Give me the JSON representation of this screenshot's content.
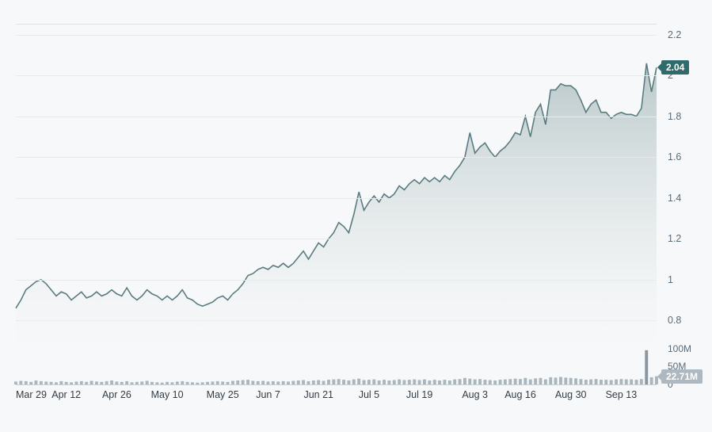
{
  "chart": {
    "type": "area",
    "background_color": "#f7f8f9",
    "grid_color": "#e8ebed",
    "axis_label_color": "#5a6b78",
    "x_label_color": "#333d45",
    "line_color": "#5a7c80",
    "line_width": 1.6,
    "fill_top_color": "#aebfc1",
    "fill_bottom_color": "#f4f6f6",
    "fill_opacity": 0.85,
    "y_axis": {
      "min": 0.7,
      "max": 2.25,
      "ticks": [
        0.8,
        1.0,
        1.2,
        1.4,
        1.6,
        1.8,
        2.0,
        2.2
      ]
    },
    "x_axis": {
      "ticks": [
        {
          "idx": 0,
          "label": "Mar 29"
        },
        {
          "idx": 10,
          "label": "Apr 12"
        },
        {
          "idx": 20,
          "label": "Apr 26"
        },
        {
          "idx": 30,
          "label": "May 10"
        },
        {
          "idx": 41,
          "label": "May 25"
        },
        {
          "idx": 50,
          "label": "Jun 7"
        },
        {
          "idx": 60,
          "label": "Jun 21"
        },
        {
          "idx": 70,
          "label": "Jul 5"
        },
        {
          "idx": 80,
          "label": "Jul 19"
        },
        {
          "idx": 91,
          "label": "Aug 3"
        },
        {
          "idx": 100,
          "label": "Aug 16"
        },
        {
          "idx": 110,
          "label": "Aug 30"
        },
        {
          "idx": 120,
          "label": "Sep 13"
        }
      ]
    },
    "current_price": {
      "value": 2.04,
      "label": "2.04",
      "badge_bg": "#2f6b6a"
    },
    "price_series": [
      0.86,
      0.9,
      0.95,
      0.97,
      0.99,
      1.0,
      0.98,
      0.95,
      0.92,
      0.94,
      0.93,
      0.9,
      0.92,
      0.94,
      0.91,
      0.92,
      0.94,
      0.92,
      0.93,
      0.95,
      0.93,
      0.92,
      0.96,
      0.92,
      0.9,
      0.92,
      0.95,
      0.93,
      0.92,
      0.9,
      0.92,
      0.9,
      0.92,
      0.95,
      0.91,
      0.9,
      0.88,
      0.87,
      0.88,
      0.89,
      0.91,
      0.92,
      0.9,
      0.93,
      0.95,
      0.98,
      1.02,
      1.03,
      1.05,
      1.06,
      1.05,
      1.07,
      1.06,
      1.08,
      1.06,
      1.08,
      1.11,
      1.14,
      1.1,
      1.14,
      1.18,
      1.16,
      1.2,
      1.23,
      1.28,
      1.26,
      1.23,
      1.32,
      1.43,
      1.34,
      1.38,
      1.41,
      1.38,
      1.42,
      1.4,
      1.42,
      1.46,
      1.44,
      1.47,
      1.49,
      1.47,
      1.5,
      1.48,
      1.5,
      1.48,
      1.51,
      1.49,
      1.53,
      1.56,
      1.6,
      1.72,
      1.62,
      1.65,
      1.67,
      1.63,
      1.6,
      1.63,
      1.65,
      1.68,
      1.72,
      1.71,
      1.8,
      1.7,
      1.82,
      1.86,
      1.76,
      1.93,
      1.93,
      1.96,
      1.95,
      1.95,
      1.93,
      1.88,
      1.82,
      1.86,
      1.88,
      1.82,
      1.82,
      1.79,
      1.81,
      1.82,
      1.81,
      1.81,
      1.8,
      1.84,
      2.06,
      1.92,
      2.04
    ]
  },
  "volume": {
    "type": "bar",
    "bar_color": "#a9b6be",
    "spike_color": "#8a97a0",
    "axis_label_color": "#5a6b78",
    "y_axis": {
      "min": 0,
      "max": 110,
      "ticks": [
        {
          "v": 0,
          "label": "0"
        },
        {
          "v": 50,
          "label": "50M"
        },
        {
          "v": 100,
          "label": "100M"
        }
      ]
    },
    "current_volume": {
      "value": 22.71,
      "label": "22.71M",
      "badge_bg": "#aeb8c0"
    },
    "series": [
      8,
      10,
      9,
      7,
      11,
      9,
      8,
      7,
      6,
      9,
      7,
      6,
      8,
      9,
      7,
      10,
      8,
      7,
      9,
      11,
      8,
      7,
      9,
      6,
      7,
      8,
      10,
      7,
      6,
      5,
      7,
      6,
      8,
      9,
      7,
      6,
      5,
      6,
      7,
      8,
      9,
      8,
      7,
      10,
      11,
      12,
      13,
      10,
      9,
      10,
      8,
      9,
      8,
      9,
      8,
      10,
      11,
      12,
      9,
      11,
      12,
      10,
      13,
      14,
      15,
      13,
      11,
      14,
      16,
      12,
      13,
      14,
      11,
      13,
      11,
      12,
      14,
      12,
      13,
      14,
      12,
      14,
      11,
      13,
      11,
      13,
      11,
      14,
      15,
      18,
      16,
      14,
      15,
      13,
      12,
      11,
      13,
      14,
      15,
      16,
      15,
      18,
      14,
      17,
      18,
      14,
      20,
      19,
      21,
      19,
      18,
      17,
      15,
      13,
      14,
      15,
      13,
      13,
      12,
      14,
      15,
      14,
      14,
      13,
      15,
      95,
      20,
      22.71
    ]
  }
}
